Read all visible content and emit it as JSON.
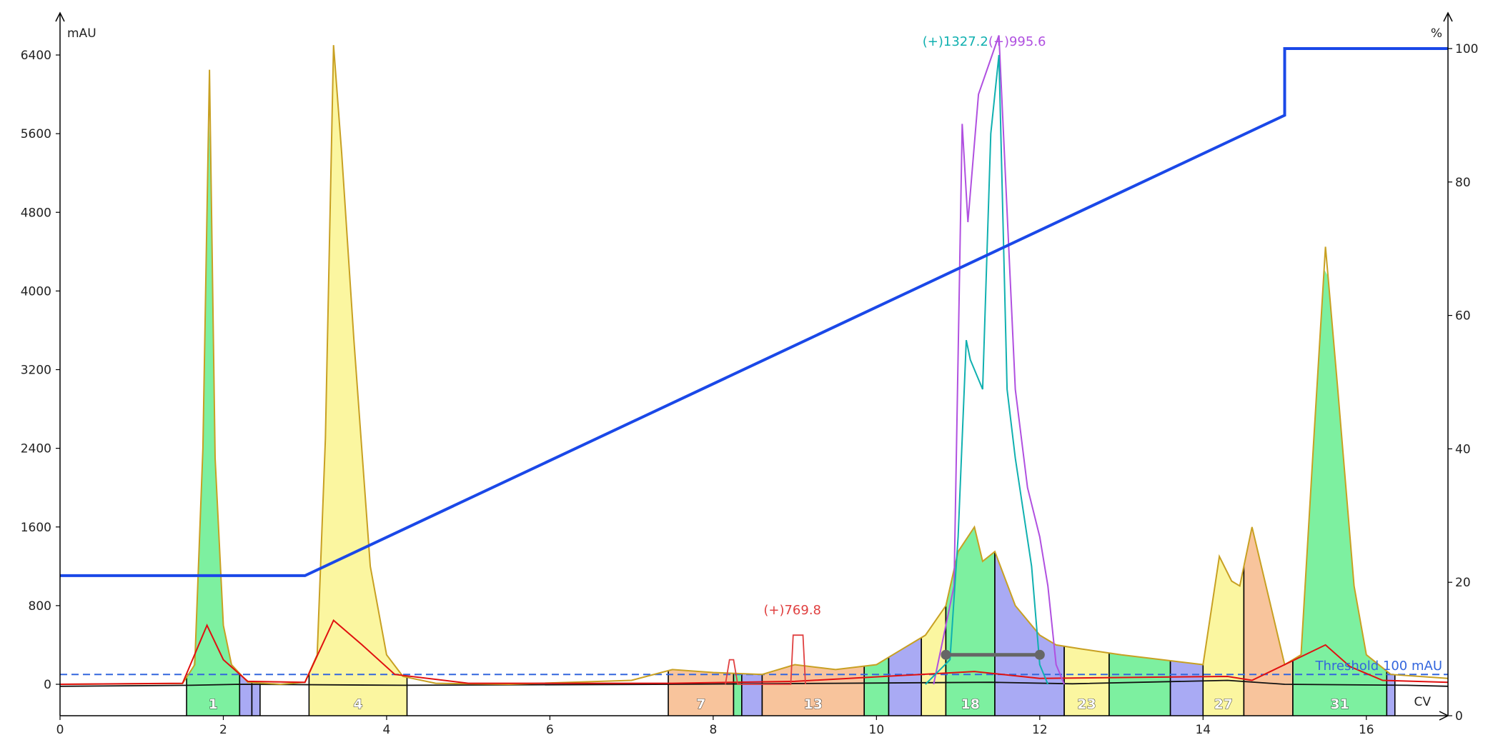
{
  "chart_data": {
    "type": "line",
    "xlabel": "CV",
    "ylabel": "mAU",
    "y2label": "%",
    "xlim": [
      0,
      17
    ],
    "ylim": [
      0,
      6600
    ],
    "y2lim": [
      0,
      100
    ],
    "x_ticks": [
      "0",
      "2",
      "4",
      "6",
      "8",
      "10",
      "12",
      "14",
      "16"
    ],
    "y_ticks": [
      "0",
      "800",
      "1600",
      "2400",
      "3200",
      "4000",
      "4800",
      "5600",
      "6400"
    ],
    "y2_ticks": [
      "0",
      "20",
      "40",
      "60",
      "80",
      "100"
    ],
    "colors": {
      "uv_trace": "#c8a022",
      "uv2_trace": "#e01010",
      "gradient": "#1a48e8",
      "threshold": "#3366dd",
      "ms_cyan": "#10b0b0",
      "ms_purple": "#b050e0",
      "ms_red": "#e04040",
      "frac_green": "#7df0a0",
      "frac_yellow": "#fbf6a0",
      "frac_orange": "#f8c49c",
      "frac_blue": "#a9aaf4"
    },
    "threshold": {
      "value": 100,
      "label": "Threshold 100 mAU"
    },
    "gradient": [
      [
        0,
        21
      ],
      [
        3,
        21
      ],
      [
        15,
        90
      ],
      [
        15,
        100
      ],
      [
        17,
        100
      ]
    ],
    "uv_trace": [
      [
        0,
        0
      ],
      [
        1.5,
        8
      ],
      [
        1.65,
        200
      ],
      [
        1.75,
        2400
      ],
      [
        1.83,
        6250
      ],
      [
        1.9,
        2300
      ],
      [
        2.0,
        600
      ],
      [
        2.1,
        200
      ],
      [
        2.3,
        20
      ],
      [
        2.7,
        0
      ],
      [
        3.0,
        20
      ],
      [
        3.15,
        300
      ],
      [
        3.25,
        2500
      ],
      [
        3.35,
        6500
      ],
      [
        3.45,
        5400
      ],
      [
        3.6,
        3500
      ],
      [
        3.8,
        1200
      ],
      [
        4.0,
        300
      ],
      [
        4.2,
        80
      ],
      [
        4.6,
        10
      ],
      [
        5.5,
        0
      ],
      [
        7.0,
        40
      ],
      [
        7.5,
        150
      ],
      [
        8.0,
        120
      ],
      [
        8.6,
        100
      ],
      [
        9.0,
        200
      ],
      [
        9.5,
        150
      ],
      [
        10.0,
        200
      ],
      [
        10.3,
        350
      ],
      [
        10.6,
        500
      ],
      [
        10.85,
        800
      ],
      [
        11.0,
        1350
      ],
      [
        11.2,
        1600
      ],
      [
        11.3,
        1250
      ],
      [
        11.45,
        1350
      ],
      [
        11.7,
        800
      ],
      [
        12.0,
        500
      ],
      [
        12.2,
        400
      ],
      [
        12.5,
        360
      ],
      [
        13.0,
        300
      ],
      [
        13.5,
        250
      ],
      [
        14.0,
        200
      ],
      [
        14.2,
        1300
      ],
      [
        14.35,
        1050
      ],
      [
        14.45,
        1000
      ],
      [
        14.6,
        1600
      ],
      [
        14.8,
        900
      ],
      [
        15.0,
        200
      ],
      [
        15.2,
        300
      ],
      [
        15.35,
        2400
      ],
      [
        15.5,
        4450
      ],
      [
        15.65,
        3000
      ],
      [
        15.85,
        1000
      ],
      [
        16.0,
        300
      ],
      [
        16.3,
        100
      ],
      [
        17,
        60
      ]
    ],
    "uv2_trace": [
      [
        0,
        0
      ],
      [
        1.5,
        10
      ],
      [
        1.8,
        600
      ],
      [
        2.0,
        250
      ],
      [
        2.3,
        30
      ],
      [
        3.0,
        20
      ],
      [
        3.35,
        650
      ],
      [
        3.7,
        400
      ],
      [
        4.1,
        100
      ],
      [
        5.0,
        10
      ],
      [
        7.5,
        10
      ],
      [
        9.0,
        30
      ],
      [
        11.2,
        130
      ],
      [
        12.0,
        60
      ],
      [
        14.3,
        80
      ],
      [
        14.6,
        40
      ],
      [
        15.5,
        400
      ],
      [
        15.8,
        180
      ],
      [
        16.2,
        40
      ],
      [
        17,
        20
      ]
    ],
    "ms_cyan": {
      "label": "(+)1327.2",
      "points": [
        [
          10.6,
          0
        ],
        [
          10.9,
          250
        ],
        [
          11.0,
          1500
        ],
        [
          11.1,
          3500
        ],
        [
          11.15,
          3300
        ],
        [
          11.3,
          3000
        ],
        [
          11.4,
          5600
        ],
        [
          11.5,
          6400
        ],
        [
          11.6,
          3000
        ],
        [
          11.7,
          2300
        ],
        [
          11.9,
          1200
        ],
        [
          12.0,
          200
        ],
        [
          12.1,
          0
        ]
      ]
    },
    "ms_purple": {
      "label": "(+)995.6",
      "points": [
        [
          10.7,
          0
        ],
        [
          10.95,
          1000
        ],
        [
          11.05,
          5700
        ],
        [
          11.12,
          4700
        ],
        [
          11.25,
          6000
        ],
        [
          11.5,
          6600
        ],
        [
          11.7,
          3000
        ],
        [
          11.85,
          2000
        ],
        [
          12.0,
          1500
        ],
        [
          12.1,
          1000
        ],
        [
          12.2,
          200
        ],
        [
          12.3,
          0
        ]
      ]
    },
    "ms_red": {
      "label": "(+)769.8",
      "points": [
        [
          8.15,
          0
        ],
        [
          8.2,
          250
        ],
        [
          8.25,
          250
        ],
        [
          8.3,
          0
        ],
        [
          8.95,
          0
        ],
        [
          8.98,
          500
        ],
        [
          9.1,
          500
        ],
        [
          9.13,
          0
        ]
      ]
    },
    "fractions": [
      {
        "label": "1",
        "x": [
          1.55,
          2.2
        ],
        "color": "green"
      },
      {
        "label": "4",
        "x": [
          3.05,
          4.25
        ],
        "color": "yellow"
      },
      {
        "label": "7",
        "x": [
          7.45,
          8.25
        ],
        "color": "orange"
      },
      {
        "label": "13",
        "x": [
          8.6,
          9.85
        ],
        "color": "orange"
      },
      {
        "label": "18",
        "x": [
          10.85,
          11.45
        ],
        "color": "green"
      },
      {
        "label": "23",
        "x": [
          12.3,
          12.85
        ],
        "color": "yellow"
      },
      {
        "label": "27",
        "x": [
          14.0,
          14.5
        ],
        "color": "yellow"
      },
      {
        "label": "31",
        "x": [
          15.1,
          16.25
        ],
        "color": "green"
      }
    ],
    "fraction_spans": [
      [
        1.55,
        2.2,
        "green"
      ],
      [
        2.2,
        2.35,
        "blue"
      ],
      [
        2.35,
        2.45,
        "blue"
      ],
      [
        3.05,
        4.25,
        "yellow"
      ],
      [
        7.45,
        8.25,
        "orange"
      ],
      [
        8.25,
        8.35,
        "green"
      ],
      [
        8.35,
        8.6,
        "blue"
      ],
      [
        8.6,
        9.85,
        "orange"
      ],
      [
        9.85,
        10.15,
        "green"
      ],
      [
        10.15,
        10.55,
        "blue"
      ],
      [
        10.55,
        10.85,
        "yellow"
      ],
      [
        10.85,
        11.45,
        "green"
      ],
      [
        11.45,
        12.3,
        "blue"
      ],
      [
        12.3,
        12.85,
        "yellow"
      ],
      [
        12.85,
        13.6,
        "green"
      ],
      [
        13.6,
        14.0,
        "blue"
      ],
      [
        14.0,
        14.5,
        "yellow"
      ],
      [
        14.5,
        15.1,
        "orange"
      ],
      [
        15.1,
        16.25,
        "green"
      ],
      [
        16.25,
        16.35,
        "blue"
      ]
    ],
    "pool_marker": [
      10.85,
      12.0,
      300
    ]
  }
}
